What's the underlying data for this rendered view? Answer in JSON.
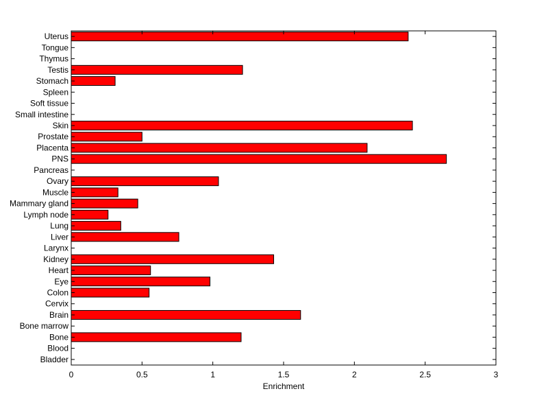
{
  "chart_data": {
    "type": "bar",
    "orientation": "horizontal",
    "xlabel": "Enrichment",
    "ylabel": "",
    "title": "",
    "xlim": [
      0,
      3
    ],
    "xticks": [
      {
        "value": 0,
        "label": "0"
      },
      {
        "value": 0.5,
        "label": "0.5"
      },
      {
        "value": 1,
        "label": "1"
      },
      {
        "value": 1.5,
        "label": "1.5"
      },
      {
        "value": 2,
        "label": "2"
      },
      {
        "value": 2.5,
        "label": "2.5"
      },
      {
        "value": 3,
        "label": "3"
      }
    ],
    "grid": false,
    "bar_color": "#ff0000",
    "edge_color": "#000000",
    "categories": [
      "Bladder",
      "Blood",
      "Bone",
      "Bone marrow",
      "Brain",
      "Cervix",
      "Colon",
      "Eye",
      "Heart",
      "Kidney",
      "Larynx",
      "Liver",
      "Lung",
      "Lymph node",
      "Mammary gland",
      "Muscle",
      "Ovary",
      "Pancreas",
      "PNS",
      "Placenta",
      "Prostate",
      "Skin",
      "Small intestine",
      "Soft tissue",
      "Spleen",
      "Stomach",
      "Testis",
      "Thymus",
      "Tongue",
      "Uterus"
    ],
    "values": [
      0,
      0,
      1.2,
      0,
      1.62,
      0,
      0.55,
      0.98,
      0.56,
      1.43,
      0,
      0.76,
      0.35,
      0.26,
      0.47,
      0.33,
      1.04,
      0,
      2.65,
      2.09,
      0.5,
      2.41,
      0,
      0,
      0,
      0.31,
      1.21,
      0,
      0,
      2.38
    ]
  }
}
